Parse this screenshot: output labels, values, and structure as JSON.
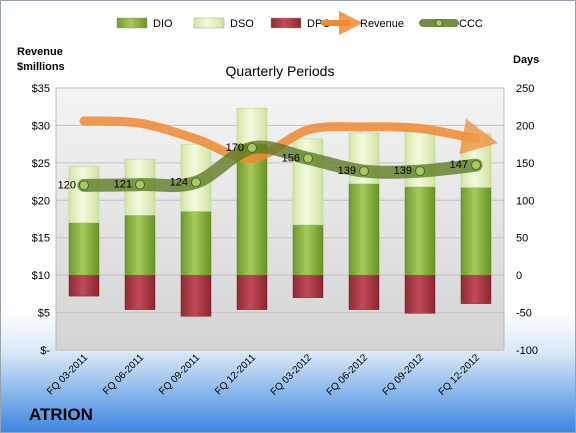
{
  "company": "ATRION",
  "chart_data": {
    "type": "bar",
    "title": "Quarterly Periods",
    "left_axis_label": [
      "Revenue",
      "$millions"
    ],
    "right_axis_label": "Days",
    "categories": [
      "FQ 03-2011",
      "FQ 06-2011",
      "FQ 09-2011",
      "FQ 12-2011",
      "FQ 03-2012",
      "FQ 06-2012",
      "FQ 09-2012",
      "FQ 12-2012"
    ],
    "left_ticks": [
      "$35",
      "$30",
      "$25",
      "$20",
      "$15",
      "$10",
      "$5",
      "$-"
    ],
    "right_ticks": [
      "250",
      "200",
      "150",
      "100",
      "50",
      "0",
      "-50",
      "-100"
    ],
    "left_range": [
      0,
      35
    ],
    "right_range": [
      -100,
      250
    ],
    "legend_position": "top",
    "legend": [
      {
        "name": "DIO",
        "kind": "bar",
        "color": "#8db040"
      },
      {
        "name": "DSO",
        "kind": "bar",
        "color": "#e8f4c8"
      },
      {
        "name": "DPO",
        "kind": "bar",
        "color": "#b03a48"
      },
      {
        "name": "Revenue",
        "kind": "arrow",
        "color": "#f08a32"
      },
      {
        "name": "CCC",
        "kind": "line",
        "color": "#6b8a2e"
      }
    ],
    "series": [
      {
        "name": "DIO",
        "axis": "right",
        "values": [
          70,
          80,
          85,
          175,
          67,
          122,
          118,
          117
        ]
      },
      {
        "name": "DSO",
        "axis": "right",
        "values": [
          75,
          75,
          90,
          48,
          115,
          68,
          75,
          72
        ]
      },
      {
        "name": "DPO",
        "axis": "right",
        "values": [
          -28,
          -46,
          -55,
          -46,
          -30,
          -46,
          -51,
          -38
        ]
      },
      {
        "name": "CCC",
        "axis": "right",
        "values": [
          120,
          121,
          124,
          170,
          156,
          139,
          139,
          147
        ]
      },
      {
        "name": "Revenue",
        "axis": "left",
        "values": [
          30.6,
          30.3,
          28.2,
          25.6,
          29.4,
          29.8,
          29.6,
          28.2
        ]
      }
    ],
    "ccc_labels": [
      "120",
      "121",
      "124",
      "170",
      "156",
      "139",
      "139",
      "147"
    ],
    "grid": true
  }
}
